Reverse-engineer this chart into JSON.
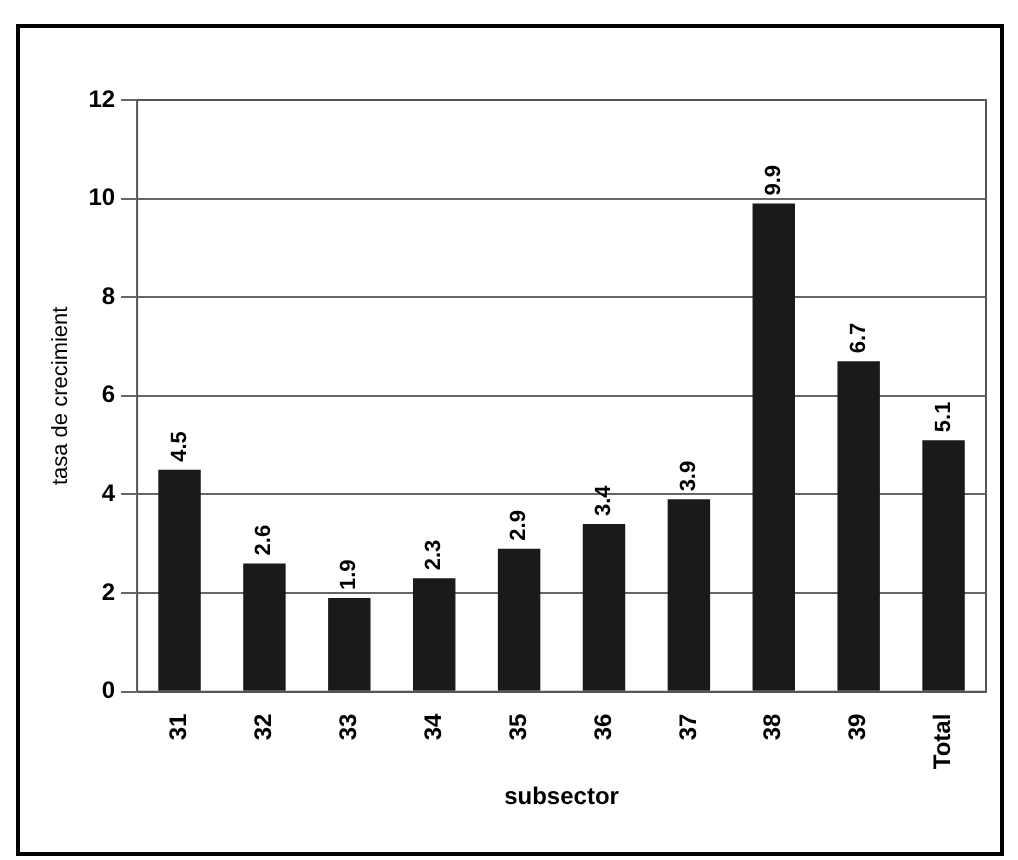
{
  "chart_data": {
    "type": "bar",
    "xlabel": "subsector",
    "ylabel": "tasa de crecimient",
    "categories": [
      "31",
      "32",
      "33",
      "34",
      "35",
      "36",
      "37",
      "38",
      "39",
      "Total"
    ],
    "values": [
      4.5,
      2.6,
      1.9,
      2.3,
      2.9,
      3.4,
      3.9,
      9.9,
      6.7,
      5.1
    ],
    "color": "#1a1a1a",
    "ylim": [
      0,
      12
    ],
    "yticks": [
      0,
      2,
      4,
      6,
      8,
      10,
      12
    ],
    "grid": "y",
    "data_labels": true,
    "legend": false
  }
}
